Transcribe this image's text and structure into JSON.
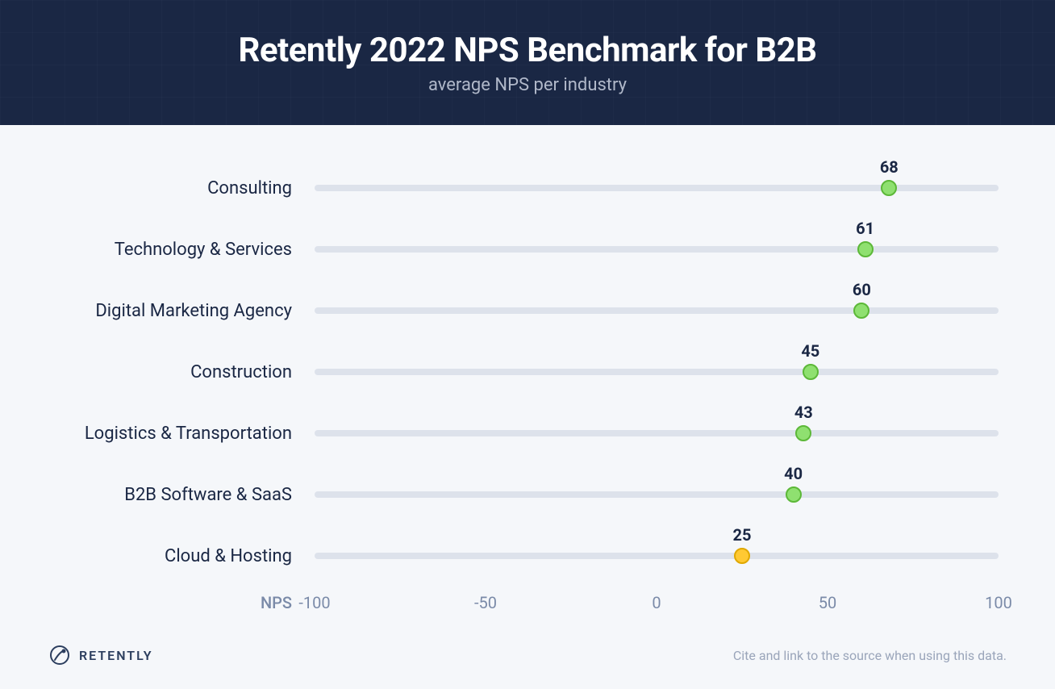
{
  "header": {
    "title": "Retently 2022 NPS Benchmark for B2B",
    "subtitle": "average NPS per industry",
    "background_color": "#1a2744",
    "title_color": "#ffffff",
    "subtitle_color": "#b0b8c9",
    "title_fontsize": 42,
    "subtitle_fontsize": 22
  },
  "chart": {
    "type": "dot-plot",
    "xlim": [
      -100,
      100
    ],
    "xticks": [
      -100,
      -50,
      0,
      50,
      100
    ],
    "xaxis_label": "NPS",
    "track_color": "#dde2eb",
    "track_height": 8,
    "marker_size": 20,
    "value_label_fontsize": 20,
    "value_label_color": "#1a2744",
    "row_label_fontsize": 22,
    "row_label_color": "#1a2744",
    "tick_label_color": "#7a8aa8",
    "tick_label_fontsize": 20,
    "background_color": "#f5f7fa",
    "colors": {
      "green_fill": "#8fe070",
      "green_border": "#5cb838",
      "yellow_fill": "#ffc933",
      "yellow_border": "#e0a800"
    },
    "rows": [
      {
        "label": "Consulting",
        "value": 68,
        "color": "green"
      },
      {
        "label": "Technology & Services",
        "value": 61,
        "color": "green"
      },
      {
        "label": "Digital Marketing Agency",
        "value": 60,
        "color": "green"
      },
      {
        "label": "Construction",
        "value": 45,
        "color": "green"
      },
      {
        "label": "Logistics & Transportation",
        "value": 43,
        "color": "green"
      },
      {
        "label": "B2B Software & SaaS",
        "value": 40,
        "color": "green"
      },
      {
        "label": "Cloud & Hosting",
        "value": 25,
        "color": "yellow"
      }
    ]
  },
  "footer": {
    "brand_name": "RETENTLY",
    "brand_color": "#2c3e5e",
    "attribution": "Cite and link to the source when using this data.",
    "attribution_color": "#9aa5ba"
  }
}
